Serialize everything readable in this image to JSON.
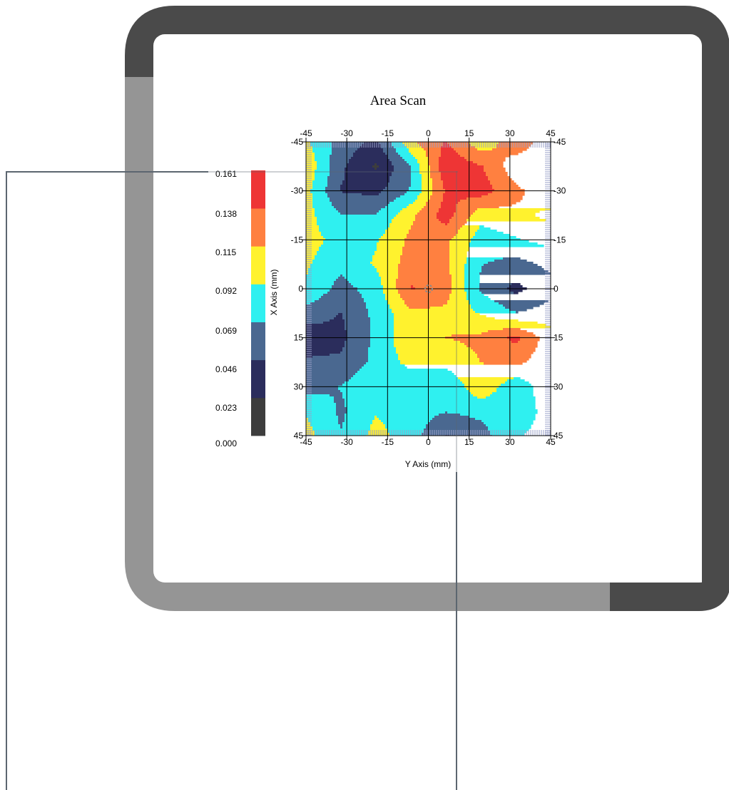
{
  "chart_data": {
    "type": "heatmap",
    "style": "filled-contour",
    "title": "Area Scan",
    "xlabel": "Y Axis (mm)",
    "ylabel": "X Axis (mm)",
    "x_ticks": [
      "-45",
      "-30",
      "-15",
      "0",
      "15",
      "30",
      "45"
    ],
    "y_ticks": [
      "-45",
      "-30",
      "-15",
      "0",
      "15",
      "30",
      "45"
    ],
    "y_axis_values": [
      -45,
      -30,
      -15,
      0,
      15,
      30,
      45
    ],
    "x_axis_values": [
      -45,
      -30,
      -15,
      0,
      15,
      30,
      45
    ],
    "xlim": [
      -45,
      45
    ],
    "ylim": [
      -45,
      45
    ],
    "y_inverted": true,
    "grid": true,
    "colorbar": {
      "ticks": [
        "0.161",
        "0.138",
        "0.115",
        "0.092",
        "0.069",
        "0.046",
        "0.023",
        "0.000"
      ],
      "levels": [
        0.0,
        0.023,
        0.046,
        0.069,
        0.092,
        0.115,
        0.138,
        0.161
      ],
      "colors": [
        "#3d3d3d",
        "#2b2d5c",
        "#4a6890",
        "#2ff0f0",
        "#fff22e",
        "#ff8040",
        "#ee3535"
      ]
    },
    "grid_values": [
      [
        0.095,
        0.06,
        0.04,
        0.11,
        0.14,
        0.1,
        0.13,
        0.1
      ],
      [
        0.11,
        0.05,
        0.02,
        0.07,
        0.155,
        0.14,
        0.1,
        0.1
      ],
      [
        0.1,
        0.045,
        0.04,
        0.07,
        0.14,
        0.15,
        0.12,
        0.1
      ],
      [
        0.1,
        0.07,
        0.07,
        0.11,
        0.15,
        0.1,
        0.11,
        0.12
      ],
      [
        0.1,
        0.085,
        0.09,
        0.12,
        0.12,
        0.08,
        0.09,
        0.1
      ],
      [
        0.095,
        0.075,
        0.095,
        0.125,
        0.12,
        0.07,
        0.06,
        0.075
      ],
      [
        0.09,
        0.06,
        0.08,
        0.14,
        0.125,
        0.065,
        0.04,
        0.06
      ],
      [
        0.06,
        0.045,
        0.075,
        0.11,
        0.11,
        0.09,
        0.07,
        0.08
      ],
      [
        0.03,
        0.04,
        0.075,
        0.11,
        0.115,
        0.12,
        0.145,
        0.1
      ],
      [
        0.05,
        0.05,
        0.075,
        0.1,
        0.1,
        0.115,
        0.12,
        0.1
      ],
      [
        0.06,
        0.07,
        0.09,
        0.07,
        0.07,
        0.11,
        0.075,
        0.11
      ],
      [
        0.09,
        0.065,
        0.09,
        0.08,
        0.07,
        0.075,
        0.08,
        0.1
      ],
      [
        0.1,
        0.07,
        0.1,
        0.08,
        0.045,
        0.06,
        0.09,
        0.1
      ]
    ]
  },
  "colors": {
    "frame_dark": "#4a4a4a",
    "frame_light": "#959595",
    "leader_line": "#5c6670"
  }
}
